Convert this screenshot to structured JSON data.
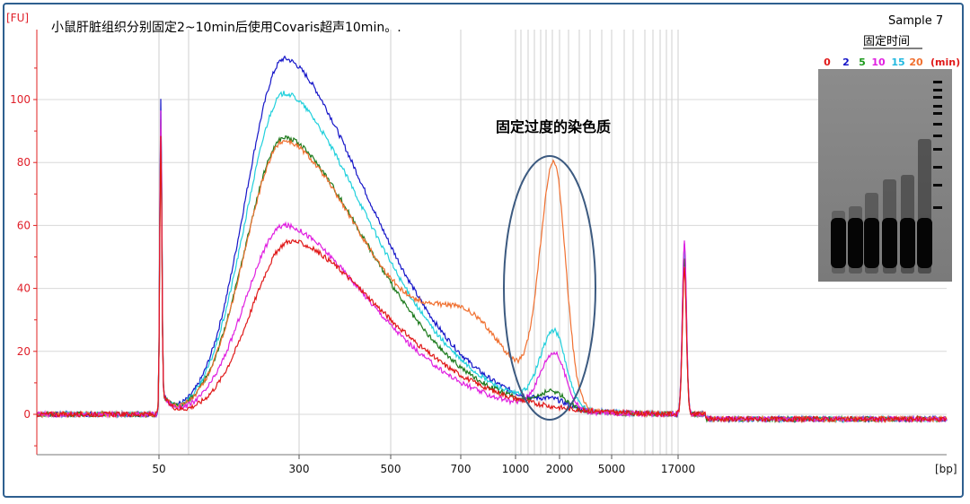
{
  "chart_data": {
    "type": "line",
    "title": "小鼠肝脏组织分别固定2~10min后使用Covaris超声10min。.",
    "ylabel": "[FU]",
    "xlabel": "[bp]",
    "ylim": [
      -13,
      128
    ],
    "yticks": [
      0,
      20,
      40,
      60,
      80,
      100
    ],
    "xtick_labels": [
      "50",
      "300",
      "500",
      "700",
      "1000",
      "2000",
      "5000",
      "17000"
    ],
    "sample_label": "Sample 7",
    "annotation": "固定过度的染色质",
    "grid": true,
    "series": [
      {
        "color": "#1515c8",
        "lower_marker_peak": 101,
        "main_peak_bp": 250,
        "main_peak_fu": 113,
        "high_peak_fu": 2,
        "upper_marker_peak": 54
      },
      {
        "color": "#21d0dc",
        "lower_marker_peak": 95,
        "main_peak_bp": 250,
        "main_peak_fu": 102,
        "high_peak_fu": 24,
        "upper_marker_peak": 52
      },
      {
        "color": "#1c7a1c",
        "lower_marker_peak": 93,
        "main_peak_bp": 250,
        "main_peak_fu": 88,
        "high_peak_fu": 5,
        "upper_marker_peak": 50
      },
      {
        "color": "#f07030",
        "lower_marker_peak": 90,
        "main_peak_bp": 250,
        "main_peak_fu": 87,
        "high_peak_fu": 76,
        "upper_marker_peak": 47
      },
      {
        "color": "#e020e0",
        "lower_marker_peak": 96,
        "main_peak_bp": 250,
        "main_peak_fu": 60,
        "high_peak_fu": 18,
        "upper_marker_peak": 55
      },
      {
        "color": "#e01818",
        "lower_marker_peak": 88,
        "main_peak_bp": 270,
        "main_peak_fu": 55,
        "high_peak_fu": 0,
        "upper_marker_peak": 46
      }
    ]
  },
  "gel": {
    "title": "固定时间",
    "lanes": [
      {
        "label": "0",
        "color": "#e01818"
      },
      {
        "label": "2",
        "color": "#1515c8"
      },
      {
        "label": "5",
        "color": "#1c9a1c"
      },
      {
        "label": "10",
        "color": "#e020e0"
      },
      {
        "label": "15",
        "color": "#21b8e0"
      },
      {
        "label": "20",
        "color": "#f07030"
      }
    ],
    "unit": "(min)",
    "unit_color": "#e01818"
  }
}
